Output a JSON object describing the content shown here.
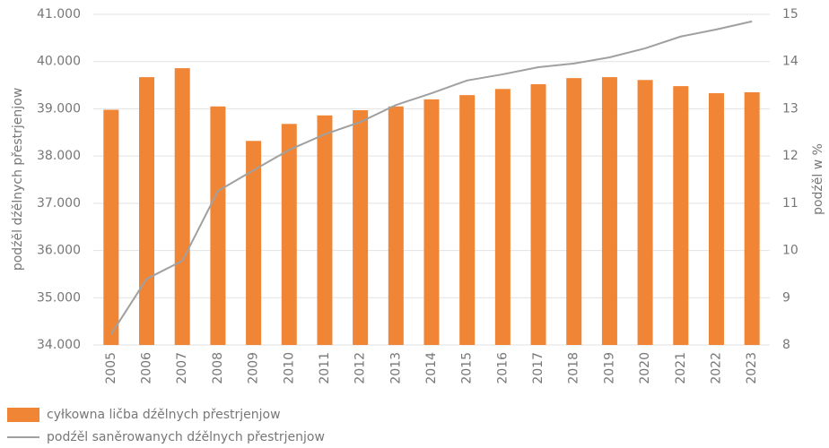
{
  "chart_data": {
    "type": "bar-line",
    "categories": [
      "2005",
      "2006",
      "2007",
      "2008",
      "2009",
      "2010",
      "2011",
      "2012",
      "2013",
      "2014",
      "2015",
      "2016",
      "2017",
      "2018",
      "2019",
      "2020",
      "2021",
      "2022",
      "2023"
    ],
    "series": [
      {
        "name": "cyłkowna ličba dźělnych přestrjenjow",
        "color": "#f08535",
        "type": "bar",
        "values": [
          38980,
          39670,
          39860,
          39050,
          38320,
          38680,
          38860,
          38970,
          39050,
          39200,
          39290,
          39420,
          39520,
          39650,
          39670,
          39610,
          39480,
          39330,
          39350
        ]
      },
      {
        "name": "podźěl saněrowanych dźělnych přestrjenjow",
        "color": "#a0a0a0",
        "type": "line",
        "axis": "y2",
        "values": [
          8.23,
          9.4,
          9.78,
          11.26,
          11.7,
          12.13,
          12.46,
          12.72,
          13.08,
          13.33,
          13.6,
          13.73,
          13.88,
          13.96,
          14.09,
          14.28,
          14.53,
          14.68,
          14.85
        ]
      }
    ],
    "ylabel": "podźěl dźělnych přestrjenjow",
    "y2label": "podźěl w %",
    "ylim": [
      34000,
      41000
    ],
    "yticks": [
      {
        "value": 34000,
        "label": "34.000"
      },
      {
        "value": 35000,
        "label": "35.000"
      },
      {
        "value": 36000,
        "label": "36.000"
      },
      {
        "value": 37000,
        "label": "37.000"
      },
      {
        "value": 38000,
        "label": "38.000"
      },
      {
        "value": 39000,
        "label": "39.000"
      },
      {
        "value": 40000,
        "label": "40.000"
      },
      {
        "value": 41000,
        "label": "41.000"
      }
    ],
    "y2lim": [
      8,
      15
    ],
    "y2ticks": [
      8,
      9,
      10,
      11,
      12,
      13,
      14,
      15
    ],
    "grid": true
  }
}
